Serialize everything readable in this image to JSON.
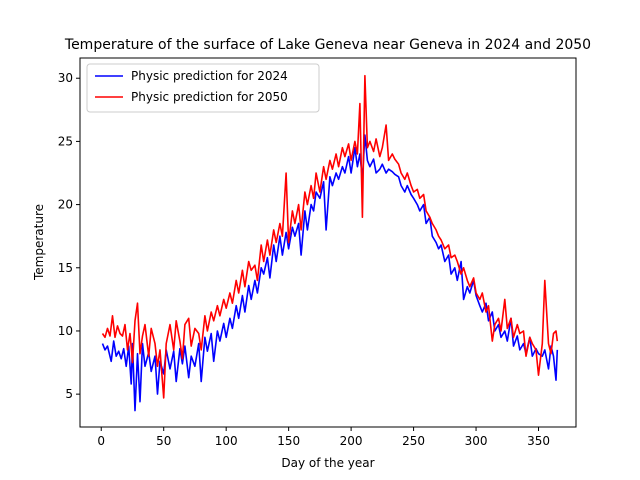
{
  "chart_data": {
    "type": "line",
    "title": "Temperature of the surface of Lake Geneva near Geneva in 2024 and 2050",
    "xlabel": "Day of the year",
    "ylabel": "Temperature",
    "xlim": [
      -17,
      380
    ],
    "ylim": [
      2.4,
      31.6
    ],
    "xticks": [
      0,
      50,
      100,
      150,
      200,
      250,
      300,
      350
    ],
    "yticks": [
      5,
      10,
      15,
      20,
      25,
      30
    ],
    "grid": false,
    "legend": "top-left",
    "series": [
      {
        "name": "Physic prediction for 2024",
        "color": "#0000ff",
        "x": [
          1,
          3,
          5,
          8,
          10,
          12,
          14,
          16,
          18,
          20,
          22,
          24,
          25,
          27,
          29,
          31,
          33,
          35,
          38,
          40,
          43,
          45,
          47,
          50,
          52,
          55,
          58,
          60,
          63,
          65,
          67,
          70,
          72,
          75,
          78,
          80,
          83,
          85,
          88,
          90,
          93,
          95,
          98,
          100,
          103,
          105,
          108,
          110,
          113,
          115,
          118,
          120,
          123,
          125,
          128,
          130,
          133,
          135,
          138,
          140,
          143,
          145,
          148,
          150,
          153,
          155,
          158,
          160,
          163,
          165,
          168,
          170,
          172,
          175,
          178,
          180,
          183,
          185,
          188,
          190,
          193,
          195,
          198,
          200,
          203,
          205,
          207,
          209,
          211,
          213,
          215,
          218,
          220,
          223,
          225,
          228,
          230,
          233,
          235,
          238,
          240,
          243,
          245,
          248,
          250,
          253,
          255,
          258,
          260,
          263,
          265,
          268,
          270,
          272,
          275,
          278,
          280,
          283,
          285,
          288,
          290,
          293,
          295,
          298,
          300,
          303,
          305,
          308,
          310,
          313,
          315,
          318,
          320,
          323,
          325,
          328,
          330,
          333,
          335,
          338,
          340,
          343,
          345,
          348,
          350,
          353,
          355,
          358,
          360,
          362,
          364,
          365
        ],
        "values": [
          9.0,
          8.5,
          8.8,
          7.6,
          9.2,
          8.0,
          8.4,
          7.8,
          8.6,
          7.2,
          8.8,
          5.8,
          9.0,
          3.7,
          8.2,
          4.4,
          9.0,
          7.2,
          8.3,
          6.8,
          8.0,
          5.0,
          7.6,
          6.6,
          8.5,
          7.0,
          8.4,
          6.0,
          8.6,
          7.4,
          8.8,
          6.3,
          8.0,
          7.2,
          9.0,
          6.0,
          9.5,
          8.4,
          9.8,
          7.6,
          10.0,
          9.2,
          10.6,
          9.5,
          11.0,
          10.2,
          12.0,
          11.0,
          12.8,
          11.5,
          13.6,
          12.5,
          14.0,
          13.0,
          15.0,
          14.5,
          15.8,
          14.2,
          16.8,
          15.5,
          17.5,
          16.0,
          17.8,
          16.5,
          18.2,
          17.5,
          18.5,
          16.0,
          19.5,
          18.0,
          20.0,
          19.5,
          21.0,
          20.5,
          21.8,
          18.0,
          22.2,
          21.5,
          22.5,
          22.0,
          23.0,
          22.5,
          23.8,
          22.5,
          24.5,
          23.0,
          24.0,
          22.0,
          25.5,
          23.5,
          23.0,
          23.6,
          22.5,
          22.8,
          23.2,
          22.5,
          22.8,
          22.6,
          22.4,
          22.2,
          21.5,
          21.0,
          21.5,
          20.8,
          20.5,
          20.0,
          19.5,
          20.0,
          18.5,
          19.0,
          17.5,
          17.0,
          16.5,
          16.8,
          15.5,
          16.0,
          14.5,
          15.0,
          14.0,
          15.5,
          12.5,
          13.5,
          13.0,
          14.0,
          12.8,
          12.0,
          11.5,
          12.2,
          10.8,
          11.5,
          10.0,
          10.5,
          9.5,
          10.0,
          9.2,
          11.0,
          8.8,
          9.6,
          8.5,
          9.0,
          8.2,
          9.5,
          8.0,
          8.6,
          8.2,
          8.0,
          8.5,
          7.0,
          8.8,
          8.0,
          6.1,
          8.5
        ]
      },
      {
        "name": "Physic prediction for 2050",
        "color": "#ff0000",
        "x": [
          1,
          3,
          5,
          7,
          9,
          11,
          13,
          15,
          17,
          19,
          21,
          23,
          25,
          27,
          29,
          31,
          33,
          35,
          38,
          40,
          43,
          45,
          47,
          50,
          52,
          55,
          58,
          60,
          63,
          65,
          67,
          70,
          72,
          75,
          78,
          80,
          83,
          85,
          88,
          90,
          93,
          95,
          98,
          100,
          103,
          105,
          108,
          110,
          113,
          115,
          118,
          120,
          123,
          125,
          128,
          130,
          133,
          135,
          138,
          140,
          143,
          145,
          148,
          150,
          153,
          155,
          158,
          160,
          163,
          165,
          168,
          170,
          172,
          175,
          178,
          180,
          183,
          185,
          188,
          190,
          193,
          195,
          198,
          200,
          203,
          205,
          207,
          209,
          211,
          213,
          215,
          218,
          220,
          223,
          225,
          228,
          230,
          233,
          235,
          238,
          240,
          243,
          245,
          248,
          250,
          253,
          255,
          258,
          260,
          263,
          265,
          268,
          270,
          272,
          275,
          278,
          280,
          283,
          285,
          288,
          290,
          293,
          295,
          298,
          300,
          303,
          305,
          308,
          310,
          313,
          315,
          318,
          320,
          323,
          325,
          328,
          330,
          333,
          335,
          338,
          340,
          343,
          345,
          348,
          350,
          353,
          355,
          358,
          360,
          362,
          364,
          365
        ],
        "values": [
          9.8,
          9.5,
          10.2,
          9.6,
          11.2,
          9.5,
          10.4,
          9.8,
          9.6,
          10.5,
          8.5,
          9.8,
          7.5,
          10.8,
          12.2,
          8.2,
          9.6,
          10.5,
          8.0,
          10.2,
          9.0,
          7.2,
          8.5,
          4.7,
          9.0,
          10.5,
          8.5,
          10.8,
          9.2,
          7.8,
          10.5,
          11.0,
          8.8,
          10.2,
          9.8,
          8.5,
          11.2,
          10.0,
          11.5,
          10.8,
          12.0,
          11.2,
          12.5,
          11.8,
          13.0,
          12.2,
          14.0,
          13.0,
          14.8,
          13.5,
          15.5,
          14.8,
          15.2,
          14.0,
          16.8,
          15.5,
          17.2,
          16.0,
          18.0,
          17.0,
          18.5,
          17.5,
          22.5,
          17.0,
          19.5,
          18.5,
          20.0,
          18.0,
          21.0,
          20.0,
          21.5,
          20.5,
          22.5,
          21.0,
          23.0,
          22.0,
          23.5,
          22.8,
          24.0,
          23.0,
          24.5,
          23.8,
          24.8,
          23.5,
          25.0,
          24.0,
          28.0,
          19.0,
          30.2,
          24.5,
          25.0,
          24.2,
          25.2,
          23.8,
          24.5,
          26.3,
          23.5,
          24.0,
          23.6,
          23.2,
          22.5,
          22.0,
          22.5,
          21.5,
          21.0,
          21.2,
          20.5,
          20.8,
          19.5,
          19.0,
          18.5,
          18.0,
          17.5,
          17.2,
          16.5,
          16.8,
          15.8,
          16.0,
          15.5,
          14.5,
          15.0,
          14.0,
          13.5,
          14.2,
          13.0,
          12.5,
          13.0,
          11.5,
          12.0,
          9.2,
          10.5,
          11.0,
          10.0,
          12.5,
          10.2,
          11.0,
          9.5,
          10.5,
          9.8,
          10.0,
          8.0,
          9.5,
          9.0,
          8.5,
          6.5,
          9.0,
          14.0,
          9.0,
          8.2,
          9.8,
          10.0,
          9.2
        ]
      }
    ]
  }
}
